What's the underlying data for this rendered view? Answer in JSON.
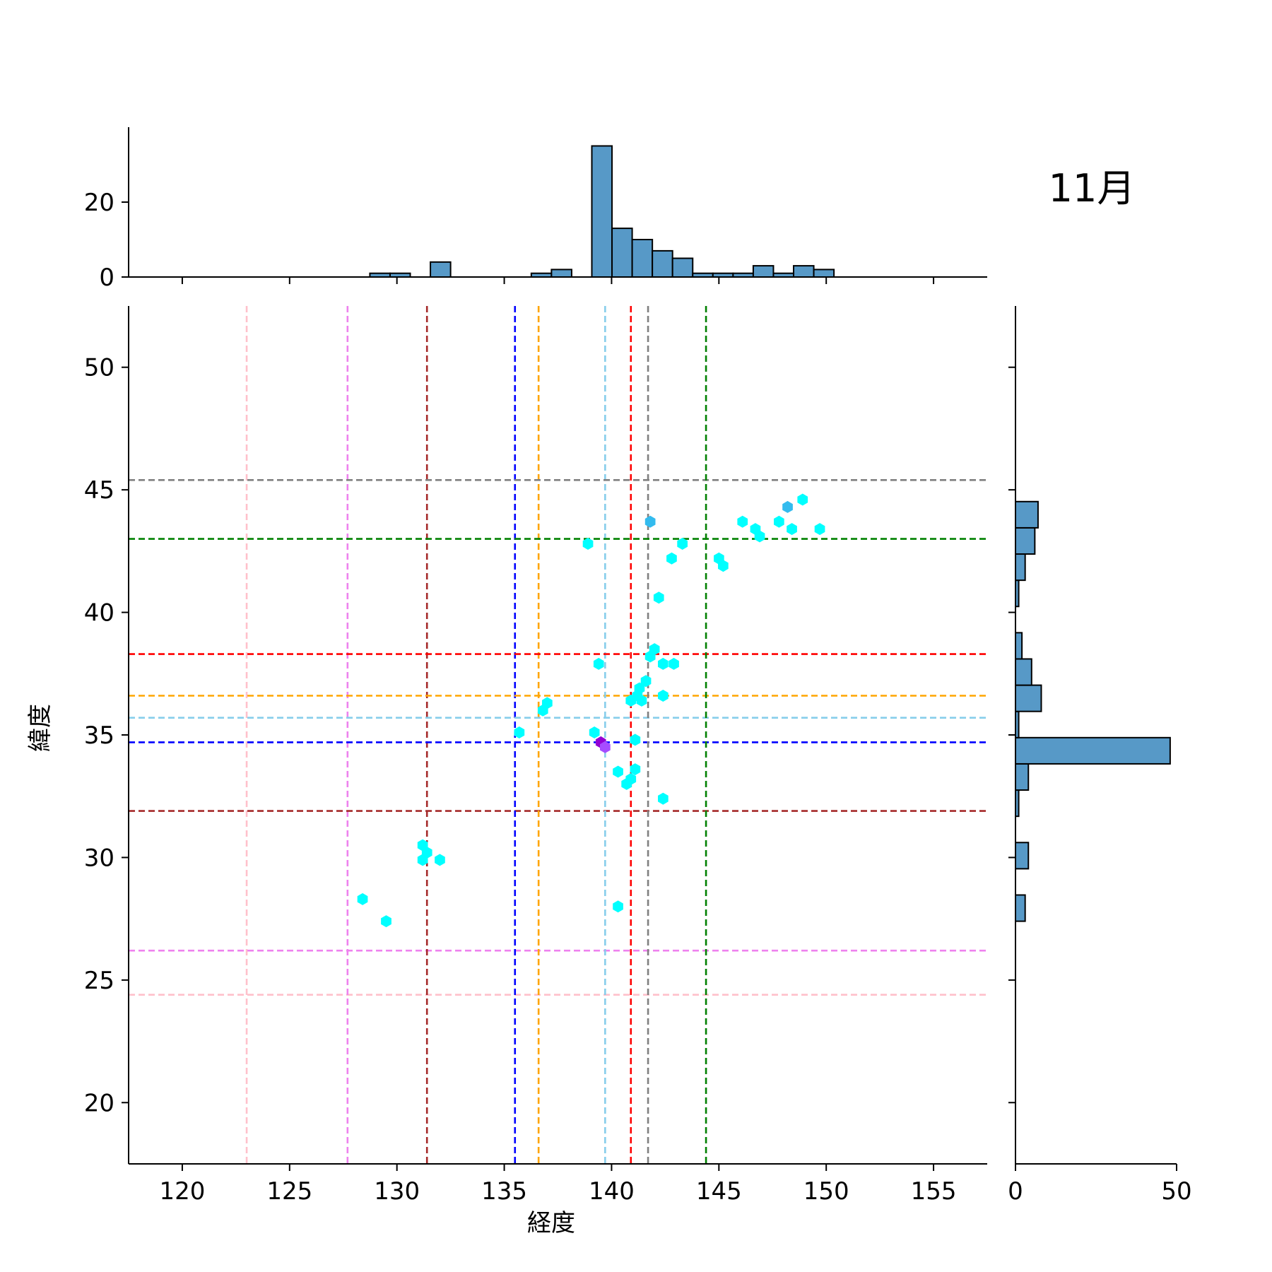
{
  "chart_data": {
    "type": "scatter",
    "title": "11月",
    "xlabel": "経度",
    "ylabel": "緯度",
    "xlim": [
      117.5,
      157.5
    ],
    "ylim": [
      17.5,
      52.5
    ],
    "xticks": [
      120,
      125,
      130,
      135,
      140,
      145,
      150,
      155
    ],
    "yticks": [
      20,
      25,
      30,
      35,
      40,
      45,
      50
    ],
    "marker": "hexagon",
    "points": [
      {
        "x": 128.4,
        "y": 28.3,
        "color": "#00ffff"
      },
      {
        "x": 129.5,
        "y": 27.4,
        "color": "#00ffff"
      },
      {
        "x": 131.2,
        "y": 30.5,
        "color": "#00ffff"
      },
      {
        "x": 131.2,
        "y": 29.9,
        "color": "#00ffff"
      },
      {
        "x": 131.4,
        "y": 30.2,
        "color": "#00ffff"
      },
      {
        "x": 132.0,
        "y": 29.9,
        "color": "#00ffff"
      },
      {
        "x": 135.7,
        "y": 35.1,
        "color": "#00ffff"
      },
      {
        "x": 136.8,
        "y": 36.0,
        "color": "#00ffff"
      },
      {
        "x": 137.0,
        "y": 36.3,
        "color": "#00ffff"
      },
      {
        "x": 138.9,
        "y": 42.8,
        "color": "#00ffff"
      },
      {
        "x": 139.2,
        "y": 35.1,
        "color": "#00ffff"
      },
      {
        "x": 139.4,
        "y": 37.9,
        "color": "#00ffff"
      },
      {
        "x": 139.5,
        "y": 34.7,
        "color": "#9400d3"
      },
      {
        "x": 139.7,
        "y": 34.5,
        "color": "#a64dff"
      },
      {
        "x": 140.3,
        "y": 33.5,
        "color": "#00ffff"
      },
      {
        "x": 140.3,
        "y": 28.0,
        "color": "#00ffff"
      },
      {
        "x": 140.7,
        "y": 33.0,
        "color": "#00ffff"
      },
      {
        "x": 140.9,
        "y": 33.2,
        "color": "#00ffff"
      },
      {
        "x": 141.1,
        "y": 33.6,
        "color": "#00ffff"
      },
      {
        "x": 141.1,
        "y": 34.8,
        "color": "#00ffff"
      },
      {
        "x": 140.9,
        "y": 36.4,
        "color": "#00ffff"
      },
      {
        "x": 141.2,
        "y": 36.6,
        "color": "#00ffff"
      },
      {
        "x": 141.3,
        "y": 36.9,
        "color": "#00ffff"
      },
      {
        "x": 141.4,
        "y": 36.4,
        "color": "#00ffff"
      },
      {
        "x": 141.6,
        "y": 37.2,
        "color": "#00ffff"
      },
      {
        "x": 141.8,
        "y": 38.2,
        "color": "#00ffff"
      },
      {
        "x": 142.0,
        "y": 38.5,
        "color": "#00ffff"
      },
      {
        "x": 142.4,
        "y": 37.9,
        "color": "#00ffff"
      },
      {
        "x": 142.9,
        "y": 37.9,
        "color": "#00ffff"
      },
      {
        "x": 142.4,
        "y": 36.6,
        "color": "#00ffff"
      },
      {
        "x": 142.4,
        "y": 32.4,
        "color": "#00ffff"
      },
      {
        "x": 142.2,
        "y": 40.6,
        "color": "#00ffff"
      },
      {
        "x": 141.8,
        "y": 43.7,
        "color": "#33bbee"
      },
      {
        "x": 142.8,
        "y": 42.2,
        "color": "#00ffff"
      },
      {
        "x": 143.3,
        "y": 42.8,
        "color": "#00ffff"
      },
      {
        "x": 145.0,
        "y": 42.2,
        "color": "#00ffff"
      },
      {
        "x": 145.2,
        "y": 41.9,
        "color": "#00ffff"
      },
      {
        "x": 146.1,
        "y": 43.7,
        "color": "#00ffff"
      },
      {
        "x": 146.7,
        "y": 43.4,
        "color": "#00ffff"
      },
      {
        "x": 146.9,
        "y": 43.1,
        "color": "#00ffff"
      },
      {
        "x": 147.8,
        "y": 43.7,
        "color": "#00ffff"
      },
      {
        "x": 148.2,
        "y": 44.3,
        "color": "#33bbee"
      },
      {
        "x": 148.4,
        "y": 43.4,
        "color": "#00ffff"
      },
      {
        "x": 148.9,
        "y": 44.6,
        "color": "#00ffff"
      },
      {
        "x": 149.7,
        "y": 43.4,
        "color": "#00ffff"
      }
    ],
    "reference_lines": [
      {
        "color": "pink",
        "lon": 123.0,
        "lat": 24.4
      },
      {
        "color": "violet",
        "lon": 127.7,
        "lat": 26.2
      },
      {
        "color": "brown",
        "lon": 131.4,
        "lat": 31.9
      },
      {
        "color": "blue",
        "lon": 135.5,
        "lat": 34.7
      },
      {
        "color": "orange",
        "lon": 136.6,
        "lat": 36.6
      },
      {
        "color": "skyblue",
        "lon": 139.7,
        "lat": 35.7
      },
      {
        "color": "red",
        "lon": 140.9,
        "lat": 38.3
      },
      {
        "color": "gray",
        "lon": 141.7,
        "lat": 45.4
      },
      {
        "color": "green",
        "lon": 144.4,
        "lat": 43.0
      }
    ],
    "top_histogram": {
      "yticks": [
        0,
        20
      ],
      "ylim": [
        0,
        40
      ],
      "bin_start": 118.4,
      "bin_width": 0.94,
      "counts": [
        0,
        0,
        0,
        0,
        0,
        0,
        0,
        0,
        0,
        0,
        0,
        1,
        1,
        0,
        4,
        0,
        0,
        0,
        0,
        1,
        2,
        0,
        35,
        13,
        10,
        7,
        5,
        1,
        1,
        1,
        3,
        1,
        3,
        2,
        0,
        0,
        0,
        0,
        0,
        0,
        0
      ]
    },
    "right_histogram": {
      "xticks": [
        0,
        50
      ],
      "xlim": [
        0,
        50
      ],
      "bins": [
        {
          "y0": 27.4,
          "y1": 28.47,
          "count": 3
        },
        {
          "y0": 28.47,
          "y1": 29.54,
          "count": 0
        },
        {
          "y0": 29.54,
          "y1": 30.61,
          "count": 4
        },
        {
          "y0": 30.61,
          "y1": 31.68,
          "count": 0
        },
        {
          "y0": 31.68,
          "y1": 32.75,
          "count": 1
        },
        {
          "y0": 32.75,
          "y1": 33.82,
          "count": 4
        },
        {
          "y0": 33.82,
          "y1": 34.89,
          "count": 48
        },
        {
          "y0": 34.89,
          "y1": 35.96,
          "count": 1
        },
        {
          "y0": 35.96,
          "y1": 37.03,
          "count": 8
        },
        {
          "y0": 37.03,
          "y1": 38.1,
          "count": 5
        },
        {
          "y0": 38.1,
          "y1": 39.17,
          "count": 2
        },
        {
          "y0": 39.17,
          "y1": 40.24,
          "count": 0
        },
        {
          "y0": 40.24,
          "y1": 41.31,
          "count": 1
        },
        {
          "y0": 41.31,
          "y1": 42.38,
          "count": 3
        },
        {
          "y0": 42.38,
          "y1": 43.45,
          "count": 6
        },
        {
          "y0": 43.45,
          "y1": 44.52,
          "count": 7
        }
      ]
    },
    "grid": false
  }
}
